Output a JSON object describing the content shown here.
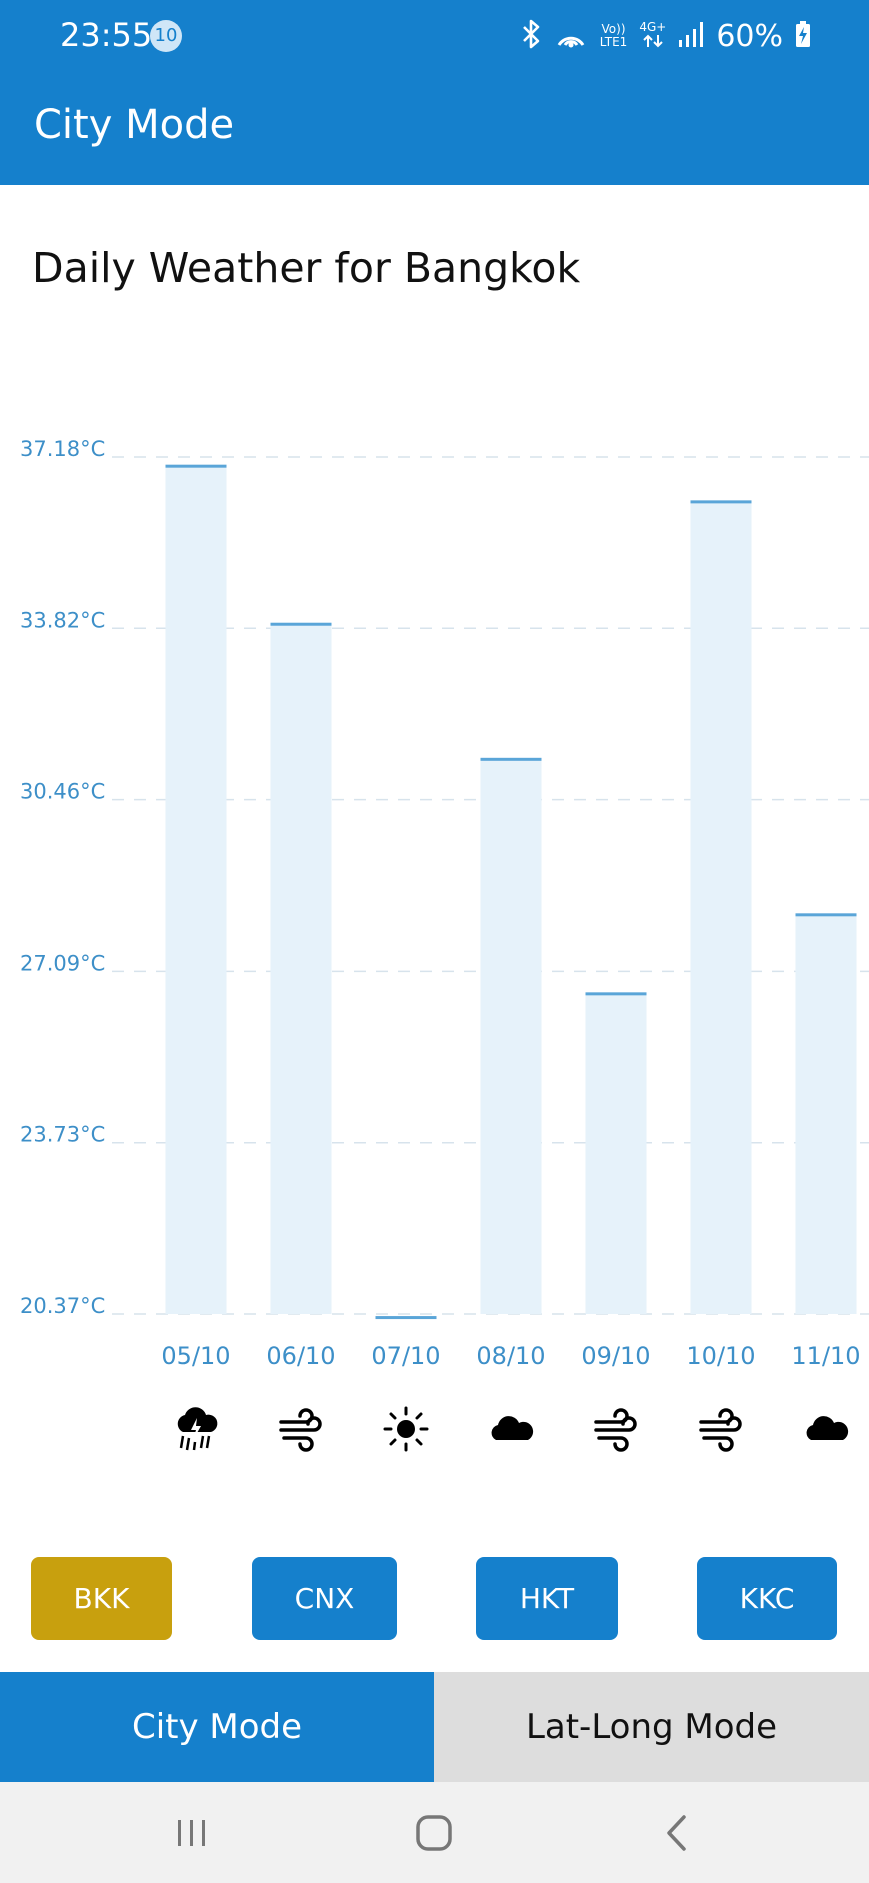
{
  "status_bar": {
    "time": "23:55",
    "notification_count": "10",
    "network_top": "Vo))",
    "network_bottom": "LTE1",
    "network_type": "4G+",
    "battery": "60%"
  },
  "app_bar": {
    "title": "City Mode"
  },
  "page": {
    "heading": "Daily Weather for Bangkok"
  },
  "chart_data": {
    "type": "bar",
    "categories": [
      "05/10",
      "06/10",
      "07/10",
      "08/10",
      "09/10",
      "10/10",
      "11/10"
    ],
    "values": [
      37.0,
      33.9,
      20.3,
      31.25,
      26.65,
      36.3,
      28.2
    ],
    "y_ticks": [
      "37.18°C",
      "33.82°C",
      "30.46°C",
      "27.09°C",
      "23.73°C",
      "20.37°C"
    ],
    "y_tick_values": [
      37.18,
      33.82,
      30.46,
      27.09,
      23.73,
      20.37
    ],
    "ylim": [
      20.37,
      37.18
    ],
    "grid": true,
    "bar_fill": "#e6f2fa",
    "bar_top_color": "#5aa5d8",
    "icons": [
      "thunderstorm-rain-icon",
      "wind-icon",
      "sun-icon",
      "cloud-icon",
      "wind-icon",
      "wind-icon",
      "cloud-icon"
    ]
  },
  "city_buttons": [
    {
      "label": "BKK",
      "active": true
    },
    {
      "label": "CNX",
      "active": false
    },
    {
      "label": "HKT",
      "active": false
    },
    {
      "label": "KKC",
      "active": false
    }
  ],
  "tabs": {
    "city": "City Mode",
    "latlong": "Lat-Long Mode"
  },
  "colors": {
    "primary": "#1580cc",
    "accent": "#c8a00e",
    "tab_inactive": "#dddddd"
  }
}
